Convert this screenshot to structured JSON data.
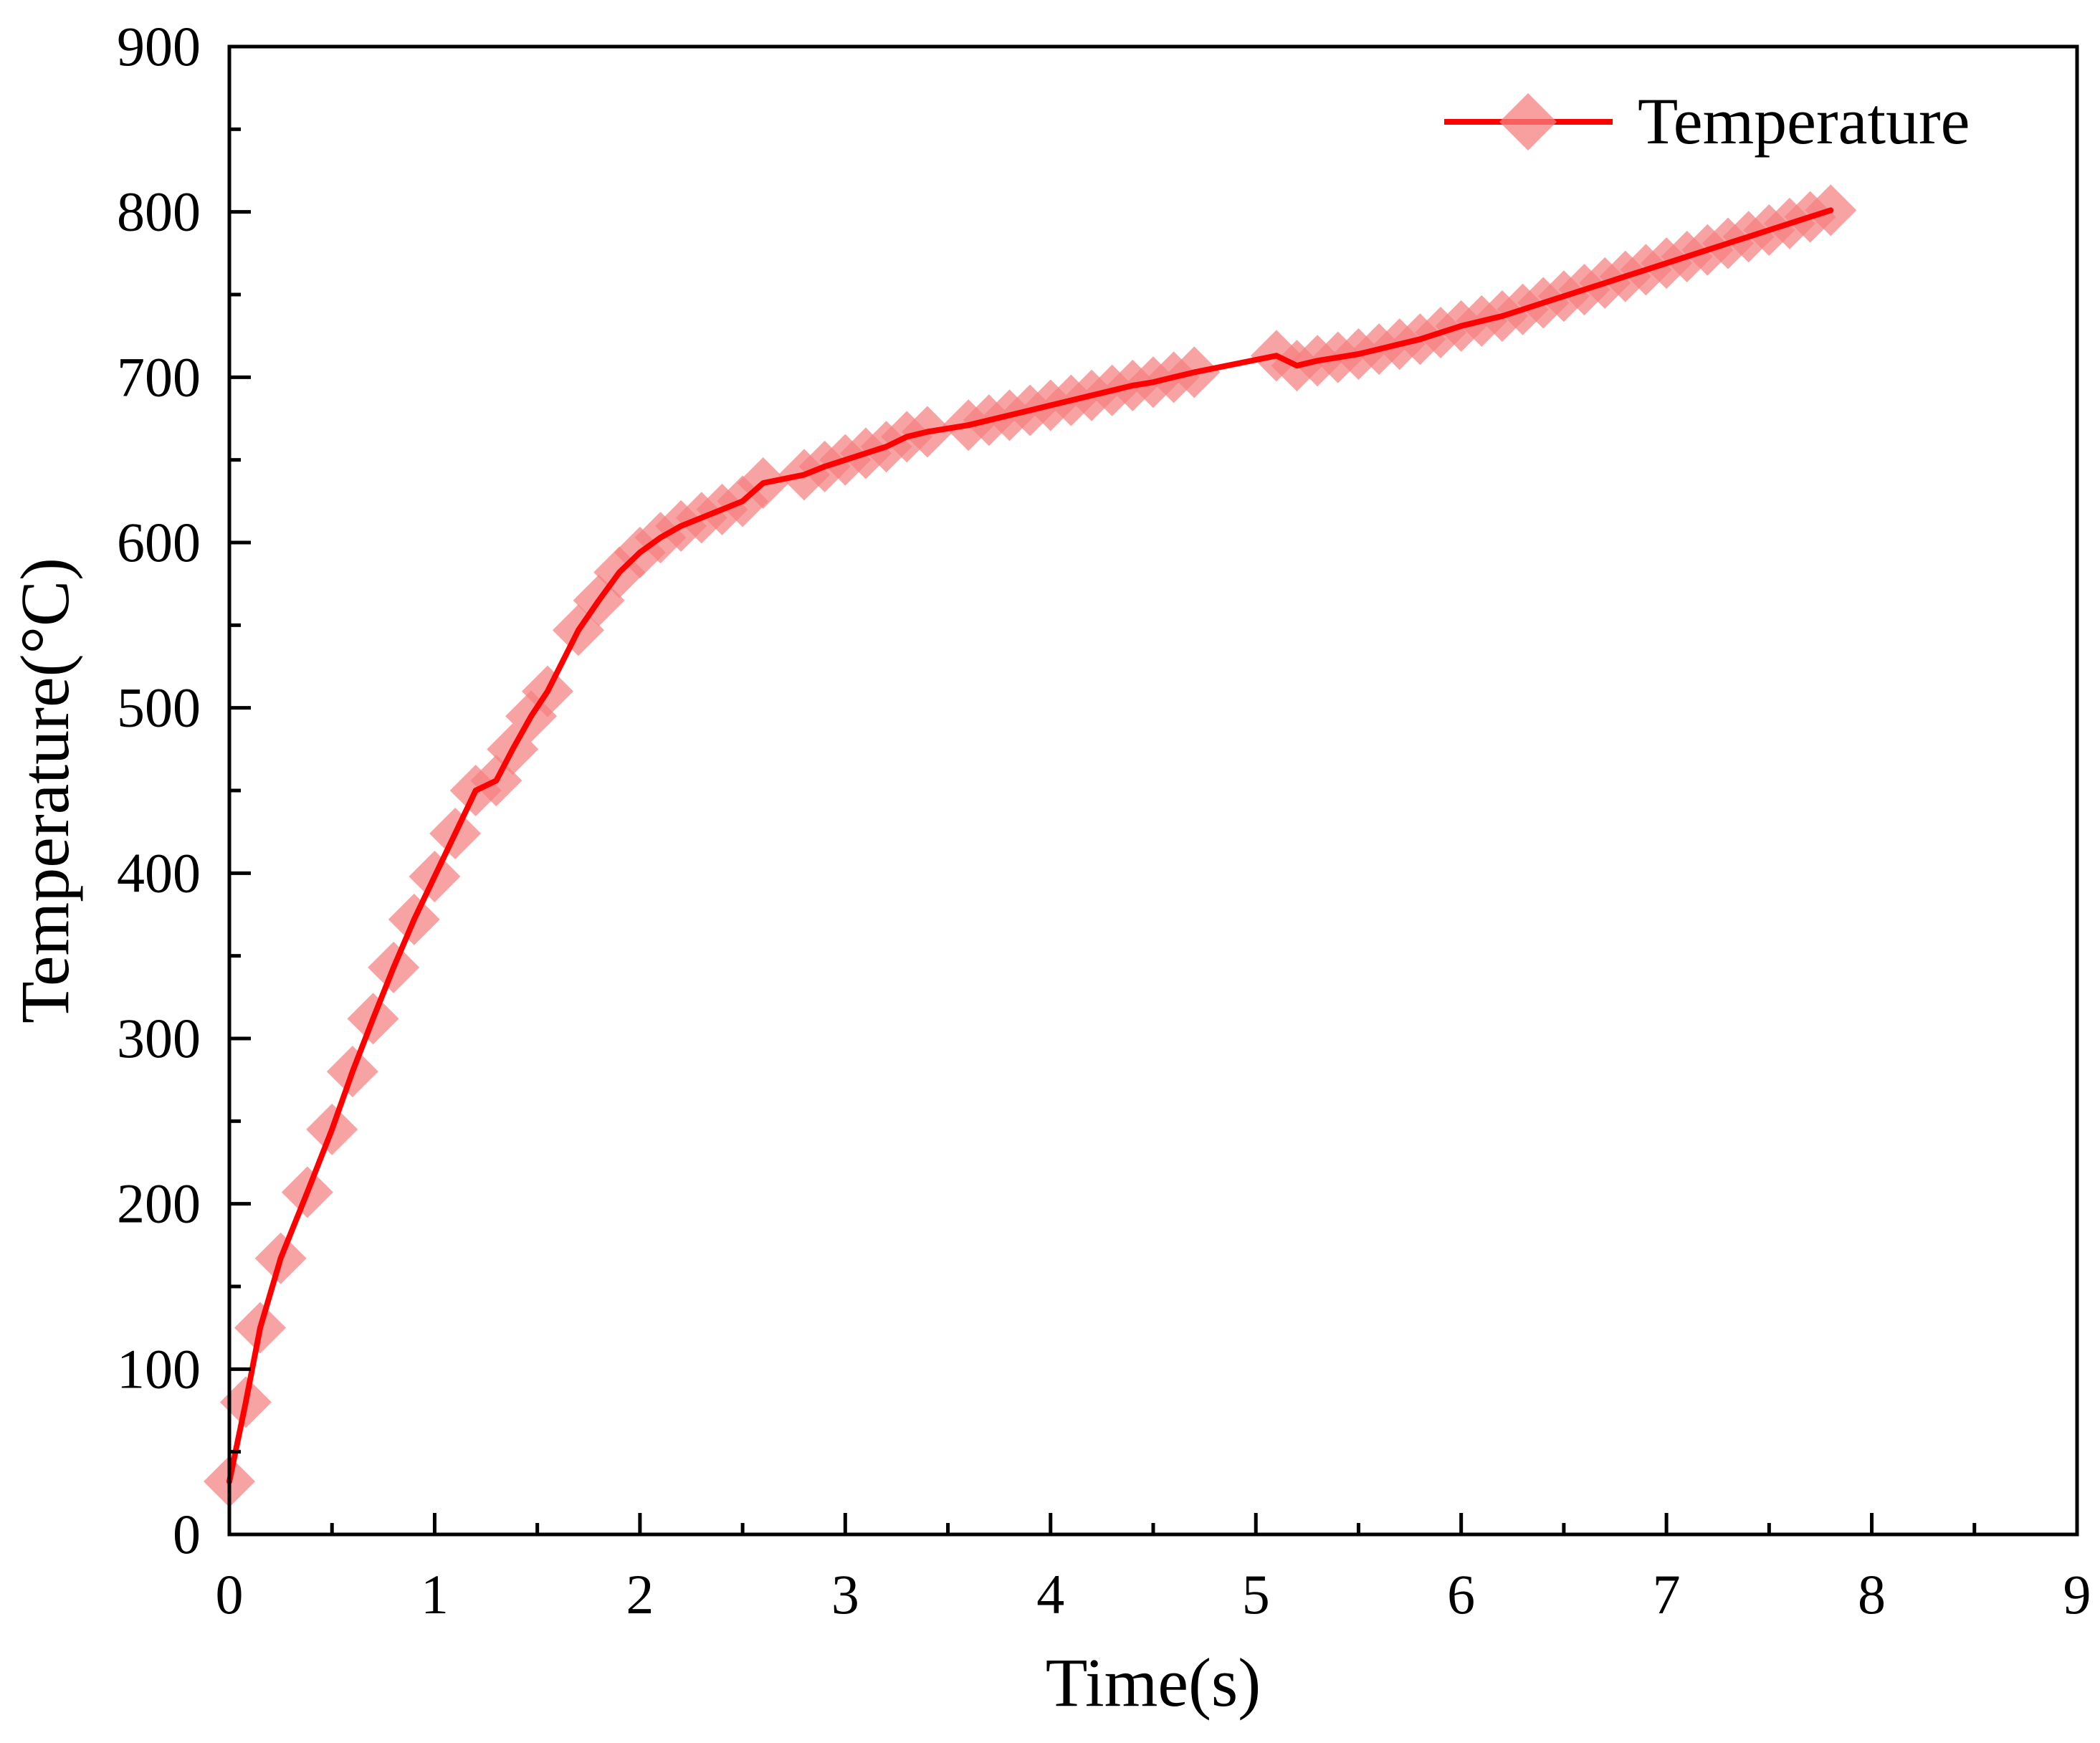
{
  "chart_data": {
    "type": "line",
    "title": "",
    "xlabel": "Time(s)",
    "ylabel": "Temperature(°C)",
    "xlim": [
      0,
      9
    ],
    "ylim": [
      0,
      900
    ],
    "xticks": [
      "0",
      "1",
      "2",
      "3",
      "4",
      "5",
      "6",
      "7",
      "8",
      "9"
    ],
    "yticks": [
      "0",
      "100",
      "200",
      "300",
      "400",
      "500",
      "600",
      "700",
      "800",
      "900"
    ],
    "grid": false,
    "legend_position": "top-right",
    "colors": {
      "line": "#ff0000",
      "marker": "#f58080"
    },
    "series": [
      {
        "name": "Temperature",
        "marker": "diamond",
        "x": [
          0.0,
          0.08,
          0.15,
          0.25,
          0.38,
          0.5,
          0.6,
          0.7,
          0.8,
          0.9,
          1.0,
          1.1,
          1.2,
          1.3,
          1.38,
          1.47,
          1.55,
          1.7,
          1.8,
          1.9,
          2.0,
          2.1,
          2.2,
          2.3,
          2.4,
          2.5,
          2.6,
          2.8,
          2.9,
          3.0,
          3.1,
          3.2,
          3.3,
          3.4,
          3.6,
          3.7,
          3.8,
          3.9,
          4.0,
          4.1,
          4.2,
          4.3,
          4.4,
          4.5,
          4.6,
          4.7,
          5.1,
          5.2,
          5.3,
          5.4,
          5.5,
          5.6,
          5.7,
          5.8,
          5.9,
          6.0,
          6.1,
          6.2,
          6.3,
          6.4,
          6.5,
          6.6,
          6.7,
          6.8,
          6.9,
          7.0,
          7.1,
          7.2,
          7.3,
          7.4,
          7.5,
          7.6,
          7.7,
          7.8
        ],
        "y": [
          32,
          80,
          125,
          167,
          207,
          245,
          280,
          312,
          343,
          372,
          398,
          424,
          450,
          456,
          475,
          495,
          510,
          547,
          565,
          582,
          594,
          603,
          610,
          615,
          620,
          625,
          636,
          641,
          646,
          650,
          654,
          658,
          664,
          667,
          671,
          674,
          677,
          680,
          683,
          686,
          689,
          692,
          695,
          697,
          700,
          703,
          713,
          707,
          710,
          712,
          714,
          717,
          720,
          723,
          727,
          731,
          734,
          737,
          741,
          745,
          749,
          753,
          757,
          761,
          765,
          769,
          773,
          777,
          781,
          785,
          789,
          793,
          797,
          801
        ]
      }
    ]
  }
}
